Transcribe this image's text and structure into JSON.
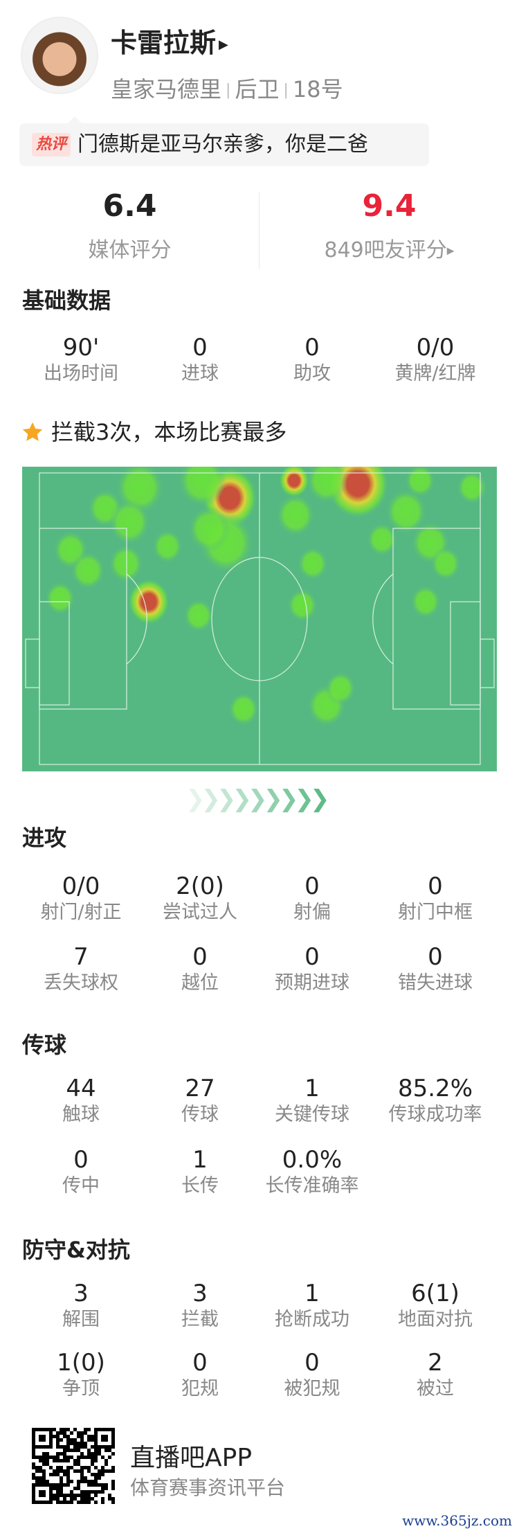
{
  "player": {
    "name": "卡雷拉斯",
    "team": "皇家马德里",
    "position": "后卫",
    "number": "18号"
  },
  "hot_comment": {
    "tag": "热评",
    "text": "门德斯是亚马尔亲爹，你是二爸"
  },
  "ratings": {
    "media_value": "6.4",
    "media_label": "媒体评分",
    "fan_value": "9.4",
    "fan_label": "849吧友评分",
    "fan_color": "#e8233a"
  },
  "basic": {
    "title": "基础数据",
    "items": [
      {
        "value": "90'",
        "label": "出场时间"
      },
      {
        "value": "0",
        "label": "进球"
      },
      {
        "value": "0",
        "label": "助攻"
      },
      {
        "value": "0/0",
        "label": "黄牌/红牌"
      }
    ]
  },
  "highlight": {
    "text": "拦截3次，本场比赛最多",
    "icon": "star-icon",
    "icon_color": "#f5a623"
  },
  "attack": {
    "title": "进攻",
    "items": [
      {
        "value": "0/0",
        "label": "射门/射正"
      },
      {
        "value": "2(0)",
        "label": "尝试过人"
      },
      {
        "value": "0",
        "label": "射偏"
      },
      {
        "value": "0",
        "label": "射门中框"
      },
      {
        "value": "7",
        "label": "丢失球权"
      },
      {
        "value": "0",
        "label": "越位"
      },
      {
        "value": "0",
        "label": "预期进球"
      },
      {
        "value": "0",
        "label": "错失进球"
      }
    ]
  },
  "passing": {
    "title": "传球",
    "items": [
      {
        "value": "44",
        "label": "触球"
      },
      {
        "value": "27",
        "label": "传球"
      },
      {
        "value": "1",
        "label": "关键传球"
      },
      {
        "value": "85.2%",
        "label": "传球成功率"
      },
      {
        "value": "0",
        "label": "传中"
      },
      {
        "value": "1",
        "label": "长传"
      },
      {
        "value": "0.0%",
        "label": "长传准确率"
      }
    ]
  },
  "defense": {
    "title": "防守&对抗",
    "items": [
      {
        "value": "3",
        "label": "解围"
      },
      {
        "value": "3",
        "label": "拦截"
      },
      {
        "value": "1",
        "label": "抢断成功"
      },
      {
        "value": "6(1)",
        "label": "地面对抗"
      },
      {
        "value": "1(0)",
        "label": "争顶"
      },
      {
        "value": "0",
        "label": "犯规"
      },
      {
        "value": "0",
        "label": "被犯规"
      },
      {
        "value": "2",
        "label": "被过"
      }
    ]
  },
  "footer": {
    "app_name": "直播吧APP",
    "tagline": "体育赛事资讯平台",
    "watermark": "www.365jz.com"
  },
  "colors": {
    "pitch": "#55b882",
    "pitch_lines": "#d8f0e0"
  }
}
